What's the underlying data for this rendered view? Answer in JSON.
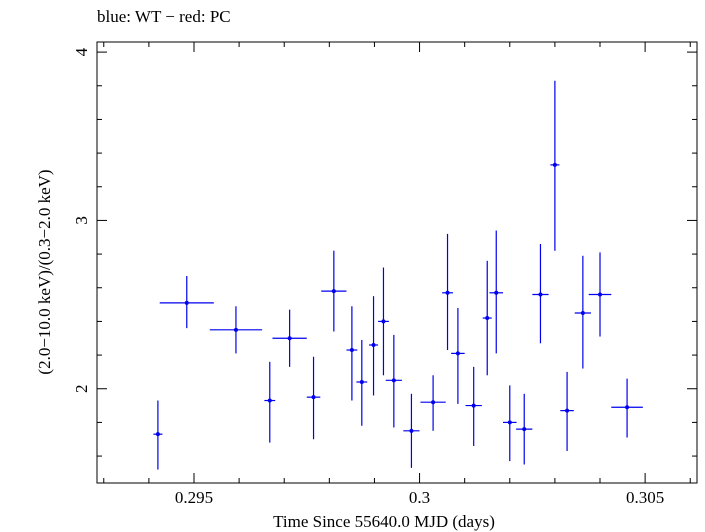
{
  "chart_data": {
    "type": "scatter",
    "title": "blue: WT − red: PC",
    "xlabel": "Time Since 55640.0 MJD (days)",
    "ylabel": "(2.0−10.0 keV)/(0.3−2.0 keV)",
    "xlim": [
      0.29285,
      0.30615
    ],
    "ylim": [
      1.44,
      4.06
    ],
    "x_ticks": [
      {
        "value": 0.295,
        "label": "0.295"
      },
      {
        "value": 0.3,
        "label": "0.3"
      },
      {
        "value": 0.305,
        "label": "0.305"
      }
    ],
    "y_ticks": [
      {
        "value": 2,
        "label": "2"
      },
      {
        "value": 3,
        "label": "3"
      },
      {
        "value": 4,
        "label": "4"
      }
    ],
    "series": [
      {
        "color": "#0000ee",
        "points": [
          {
            "x": 0.2942,
            "y": 1.73,
            "xerr": 0.0001,
            "ylo": 1.52,
            "yhi": 1.93
          },
          {
            "x": 0.29484,
            "y": 2.51,
            "xerr": 0.0006,
            "ylo": 2.36,
            "yhi": 2.67
          },
          {
            "x": 0.29593,
            "y": 2.35,
            "xerr": 0.00058,
            "ylo": 2.21,
            "yhi": 2.49
          },
          {
            "x": 0.29668,
            "y": 1.93,
            "xerr": 0.00012,
            "ylo": 1.68,
            "yhi": 2.16
          },
          {
            "x": 0.29712,
            "y": 2.3,
            "xerr": 0.00038,
            "ylo": 2.13,
            "yhi": 2.47
          },
          {
            "x": 0.29765,
            "y": 1.95,
            "xerr": 0.00015,
            "ylo": 1.7,
            "yhi": 2.19
          },
          {
            "x": 0.2981,
            "y": 2.58,
            "xerr": 0.00028,
            "ylo": 2.34,
            "yhi": 2.82
          },
          {
            "x": 0.2985,
            "y": 2.23,
            "xerr": 0.00012,
            "ylo": 1.93,
            "yhi": 2.49
          },
          {
            "x": 0.29872,
            "y": 2.04,
            "xerr": 0.00012,
            "ylo": 1.78,
            "yhi": 2.29
          },
          {
            "x": 0.29898,
            "y": 2.26,
            "xerr": 0.0001,
            "ylo": 1.96,
            "yhi": 2.55
          },
          {
            "x": 0.2992,
            "y": 2.4,
            "xerr": 0.00012,
            "ylo": 2.08,
            "yhi": 2.72
          },
          {
            "x": 0.29943,
            "y": 2.05,
            "xerr": 0.00018,
            "ylo": 1.77,
            "yhi": 2.32
          },
          {
            "x": 0.29982,
            "y": 1.75,
            "xerr": 0.00018,
            "ylo": 1.53,
            "yhi": 1.97
          },
          {
            "x": 0.3003,
            "y": 1.92,
            "xerr": 0.00028,
            "ylo": 1.75,
            "yhi": 2.08
          },
          {
            "x": 0.30062,
            "y": 2.57,
            "xerr": 0.00012,
            "ylo": 2.23,
            "yhi": 2.92
          },
          {
            "x": 0.30085,
            "y": 2.21,
            "xerr": 0.00015,
            "ylo": 1.91,
            "yhi": 2.48
          },
          {
            "x": 0.3012,
            "y": 1.9,
            "xerr": 0.00018,
            "ylo": 1.66,
            "yhi": 2.13
          },
          {
            "x": 0.3015,
            "y": 2.42,
            "xerr": 0.0001,
            "ylo": 2.08,
            "yhi": 2.76
          },
          {
            "x": 0.3017,
            "y": 2.57,
            "xerr": 0.00015,
            "ylo": 2.21,
            "yhi": 2.94
          },
          {
            "x": 0.302,
            "y": 1.8,
            "xerr": 0.00015,
            "ylo": 1.57,
            "yhi": 2.02
          },
          {
            "x": 0.30232,
            "y": 1.76,
            "xerr": 0.00018,
            "ylo": 1.55,
            "yhi": 1.97
          },
          {
            "x": 0.30268,
            "y": 2.56,
            "xerr": 0.00018,
            "ylo": 2.27,
            "yhi": 2.86
          },
          {
            "x": 0.303,
            "y": 3.33,
            "xerr": 0.0001,
            "ylo": 2.82,
            "yhi": 3.83
          },
          {
            "x": 0.30327,
            "y": 1.87,
            "xerr": 0.00015,
            "ylo": 1.63,
            "yhi": 2.1
          },
          {
            "x": 0.30362,
            "y": 2.45,
            "xerr": 0.00018,
            "ylo": 2.12,
            "yhi": 2.79
          },
          {
            "x": 0.304,
            "y": 2.56,
            "xerr": 0.00025,
            "ylo": 2.31,
            "yhi": 2.81
          },
          {
            "x": 0.3046,
            "y": 1.89,
            "xerr": 0.00035,
            "ylo": 1.71,
            "yhi": 2.06
          }
        ]
      }
    ]
  }
}
